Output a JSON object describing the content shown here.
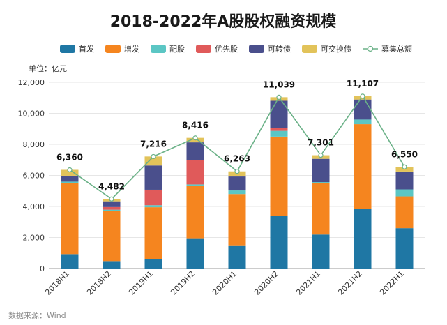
{
  "chart_data": {
    "type": "bar",
    "stacked": true,
    "title": "2018-2022年A股股权融资规模",
    "unit_label": "单位：亿元",
    "source": "数据来源：Wind",
    "categories": [
      "2018H1",
      "2018H2",
      "2019H1",
      "2019H2",
      "2020H1",
      "2020H2",
      "2021H1",
      "2021H2",
      "2022H1"
    ],
    "ylim": [
      0,
      12000
    ],
    "yticks": [
      "0",
      "2,000",
      "4,000",
      "6,000",
      "8,000",
      "10,000",
      "12,000"
    ],
    "ytick_values": [
      0,
      2000,
      4000,
      6000,
      8000,
      10000,
      12000
    ],
    "series": [
      {
        "name": "首发",
        "color": "#1f77a4",
        "values": [
          930,
          480,
          620,
          1950,
          1450,
          3400,
          2190,
          3850,
          2600
        ]
      },
      {
        "name": "增发",
        "color": "#f5851f",
        "values": [
          4560,
          3250,
          3330,
          3400,
          3350,
          5100,
          3300,
          5450,
          2050
        ]
      },
      {
        "name": "配股",
        "color": "#5bc6c4",
        "values": [
          110,
          60,
          130,
          70,
          230,
          370,
          80,
          300,
          450
        ]
      },
      {
        "name": "优先股",
        "color": "#e05a5a",
        "values": [
          0,
          170,
          1000,
          1580,
          0,
          170,
          0,
          0,
          0
        ]
      },
      {
        "name": "可转债",
        "color": "#4a4f8c",
        "values": [
          380,
          370,
          1560,
          1130,
          900,
          1770,
          1500,
          1290,
          1150
        ]
      },
      {
        "name": "可交换债",
        "color": "#e2c35a",
        "values": [
          380,
          150,
          580,
          290,
          330,
          230,
          230,
          220,
          300
        ]
      }
    ],
    "line_series": {
      "name": "募集总额",
      "color": "#6ab187",
      "values": [
        6360,
        4482,
        7216,
        8416,
        6263,
        11039,
        7301,
        11107,
        6550
      ]
    },
    "total_labels": [
      "6,360",
      "4,482",
      "7,216",
      "8,416",
      "6,263",
      "11,039",
      "7,301",
      "11,107",
      "6,550"
    ],
    "legend_position": "top",
    "grid": true
  }
}
